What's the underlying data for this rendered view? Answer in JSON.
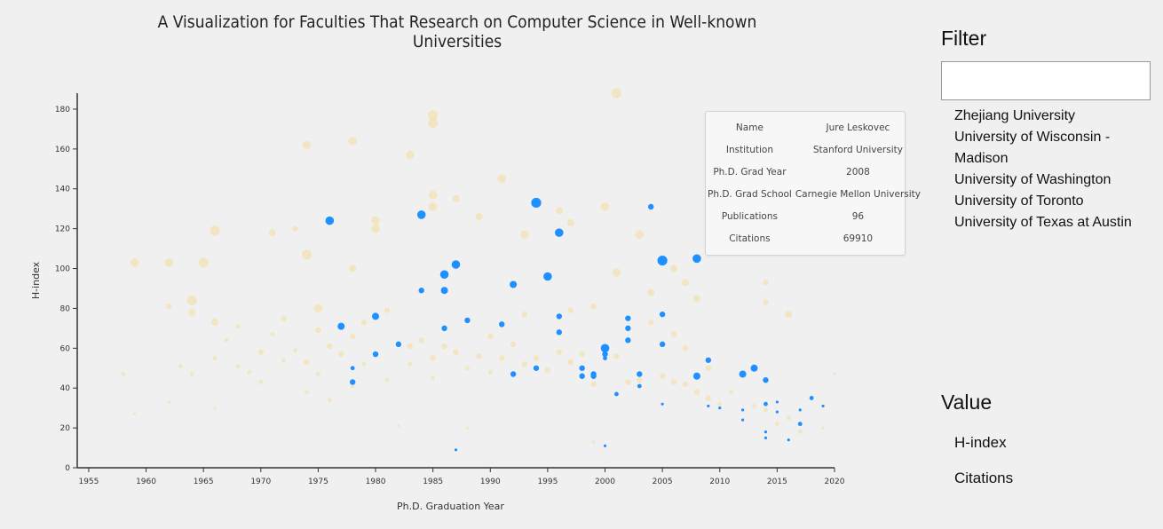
{
  "chart_data": {
    "type": "scatter",
    "title": "A Visualization for Faculties That Research on Computer Science in Well-known Universities",
    "xlabel": "Ph.D. Graduation Year",
    "ylabel": "H-index",
    "xlim": [
      1954,
      2020
    ],
    "ylim": [
      0,
      188
    ],
    "x_ticks": [
      1955,
      1960,
      1965,
      1970,
      1975,
      1980,
      1985,
      1990,
      1995,
      2000,
      2005,
      2010,
      2015,
      2020
    ],
    "y_ticks": [
      0,
      20,
      40,
      60,
      80,
      100,
      120,
      140,
      160,
      180
    ],
    "series": [
      {
        "highlighted": true,
        "color": "#1e90ff",
        "points": [
          [
            1976,
            124,
            6
          ],
          [
            1977,
            71,
            5
          ],
          [
            1978,
            50,
            3
          ],
          [
            1978,
            43,
            4
          ],
          [
            1980,
            76,
            5
          ],
          [
            1980,
            57,
            4
          ],
          [
            1982,
            62,
            4
          ],
          [
            1984,
            127,
            6
          ],
          [
            1984,
            89,
            4
          ],
          [
            1986,
            97,
            6
          ],
          [
            1986,
            89,
            5
          ],
          [
            1986,
            70,
            4
          ],
          [
            1987,
            102,
            6
          ],
          [
            1987,
            9,
            2
          ],
          [
            1988,
            74,
            4
          ],
          [
            1991,
            72,
            4
          ],
          [
            1992,
            47,
            4
          ],
          [
            1992,
            92,
            5
          ],
          [
            1994,
            133,
            7
          ],
          [
            1994,
            50,
            4
          ],
          [
            1995,
            96,
            6
          ],
          [
            1996,
            118,
            6
          ],
          [
            1996,
            76,
            4
          ],
          [
            1996,
            68,
            4
          ],
          [
            1998,
            50,
            4
          ],
          [
            1998,
            46,
            4
          ],
          [
            1999,
            47,
            4
          ],
          [
            1999,
            46,
            4
          ],
          [
            2000,
            60,
            6
          ],
          [
            2000,
            57,
            4
          ],
          [
            2000,
            55,
            3
          ],
          [
            2000,
            11,
            2
          ],
          [
            2001,
            37,
            3
          ],
          [
            2002,
            75,
            4
          ],
          [
            2002,
            70,
            4
          ],
          [
            2002,
            64,
            4
          ],
          [
            2003,
            47,
            4
          ],
          [
            2003,
            41,
            3
          ],
          [
            2004,
            131,
            4
          ],
          [
            2005,
            104,
            7
          ],
          [
            2005,
            77,
            4
          ],
          [
            2005,
            62,
            4
          ],
          [
            2005,
            32,
            2
          ],
          [
            2008,
            105,
            6
          ],
          [
            2008,
            46,
            5
          ],
          [
            2009,
            54,
            4
          ],
          [
            2009,
            31,
            2
          ],
          [
            2010,
            30,
            2
          ],
          [
            2012,
            47,
            5
          ],
          [
            2012,
            29,
            2
          ],
          [
            2012,
            24,
            2
          ],
          [
            2013,
            50,
            5
          ],
          [
            2014,
            44,
            4
          ],
          [
            2014,
            32,
            3
          ],
          [
            2014,
            18,
            2
          ],
          [
            2014,
            15,
            2
          ],
          [
            2015,
            33,
            2
          ],
          [
            2015,
            28,
            2
          ],
          [
            2016,
            14,
            2
          ],
          [
            2017,
            29,
            2
          ],
          [
            2017,
            22,
            3
          ],
          [
            2018,
            35,
            3
          ],
          [
            2019,
            31,
            2
          ]
        ]
      },
      {
        "highlighted": false,
        "color": "#f5d88a",
        "points": [
          [
            1959,
            103,
            6
          ],
          [
            1962,
            103,
            6
          ],
          [
            1962,
            81,
            4
          ],
          [
            1964,
            84,
            7
          ],
          [
            1964,
            78,
            5
          ],
          [
            1965,
            103,
            7
          ],
          [
            1966,
            119,
            7
          ],
          [
            1966,
            73,
            5
          ],
          [
            1971,
            118,
            5
          ],
          [
            1973,
            120,
            4
          ],
          [
            1974,
            162,
            6
          ],
          [
            1974,
            107,
            7
          ],
          [
            1975,
            80,
            6
          ],
          [
            1978,
            164,
            6
          ],
          [
            1978,
            100,
            5
          ],
          [
            1980,
            124,
            6
          ],
          [
            1980,
            120,
            6
          ],
          [
            1983,
            157,
            6
          ],
          [
            1985,
            177,
            7
          ],
          [
            1985,
            173,
            7
          ],
          [
            1985,
            137,
            6
          ],
          [
            1985,
            131,
            6
          ],
          [
            1987,
            135,
            5
          ],
          [
            1989,
            126,
            5
          ],
          [
            1991,
            145,
            6
          ],
          [
            1993,
            117,
            6
          ],
          [
            1996,
            129,
            5
          ],
          [
            1997,
            123,
            5
          ],
          [
            2000,
            131,
            6
          ],
          [
            2001,
            188,
            7
          ],
          [
            2001,
            98,
            6
          ],
          [
            2003,
            117,
            6
          ],
          [
            2004,
            88,
            5
          ],
          [
            2006,
            100,
            5
          ],
          [
            2007,
            93,
            5
          ],
          [
            2008,
            85,
            5
          ],
          [
            2014,
            93,
            4
          ],
          [
            2014,
            83,
            4
          ],
          [
            2016,
            77,
            5
          ],
          [
            1958,
            47,
            3
          ],
          [
            1959,
            27,
            2
          ],
          [
            1962,
            33,
            2
          ],
          [
            1963,
            51,
            3
          ],
          [
            1964,
            47,
            3
          ],
          [
            1966,
            55,
            3
          ],
          [
            1966,
            30,
            2
          ],
          [
            1967,
            64,
            3
          ],
          [
            1968,
            71,
            3
          ],
          [
            1968,
            51,
            3
          ],
          [
            1969,
            48,
            3
          ],
          [
            1970,
            58,
            4
          ],
          [
            1970,
            43,
            3
          ],
          [
            1971,
            67,
            3
          ],
          [
            1972,
            75,
            4
          ],
          [
            1972,
            54,
            3
          ],
          [
            1973,
            59,
            3
          ],
          [
            1974,
            53,
            4
          ],
          [
            1974,
            38,
            3
          ],
          [
            1975,
            69,
            4
          ],
          [
            1975,
            47,
            3
          ],
          [
            1976,
            61,
            4
          ],
          [
            1976,
            34,
            3
          ],
          [
            1977,
            57,
            4
          ],
          [
            1978,
            66,
            4
          ],
          [
            1978,
            41,
            3
          ],
          [
            1979,
            52,
            3
          ],
          [
            1979,
            73,
            4
          ],
          [
            1981,
            79,
            4
          ],
          [
            1981,
            44,
            3
          ],
          [
            1983,
            61,
            4
          ],
          [
            1983,
            52,
            3
          ],
          [
            1984,
            64,
            4
          ],
          [
            1985,
            55,
            4
          ],
          [
            1985,
            45,
            3
          ],
          [
            1986,
            61,
            4
          ],
          [
            1987,
            58,
            4
          ],
          [
            1988,
            50,
            3
          ],
          [
            1989,
            56,
            4
          ],
          [
            1990,
            66,
            4
          ],
          [
            1990,
            48,
            3
          ],
          [
            1991,
            55,
            4
          ],
          [
            1992,
            62,
            4
          ],
          [
            1993,
            52,
            4
          ],
          [
            1994,
            55,
            4
          ],
          [
            1995,
            49,
            4
          ],
          [
            1996,
            58,
            4
          ],
          [
            1997,
            53,
            4
          ],
          [
            1998,
            57,
            4
          ],
          [
            1999,
            42,
            4
          ],
          [
            2001,
            56,
            4
          ],
          [
            2002,
            43,
            4
          ],
          [
            2003,
            44,
            4
          ],
          [
            2005,
            46,
            4
          ],
          [
            2006,
            43,
            4
          ],
          [
            2007,
            42,
            4
          ],
          [
            2008,
            38,
            4
          ],
          [
            2009,
            35,
            4
          ],
          [
            2010,
            32,
            3
          ],
          [
            2011,
            38,
            3
          ],
          [
            2013,
            31,
            3
          ],
          [
            2014,
            29,
            3
          ],
          [
            2015,
            22,
            3
          ],
          [
            2016,
            25,
            3
          ],
          [
            2017,
            18,
            3
          ],
          [
            2019,
            20,
            2
          ],
          [
            2020,
            47,
            2
          ],
          [
            1999,
            81,
            4
          ],
          [
            1997,
            79,
            4
          ],
          [
            1993,
            77,
            4
          ],
          [
            2004,
            73,
            4
          ],
          [
            2006,
            67,
            4
          ],
          [
            2007,
            60,
            4
          ],
          [
            2009,
            50,
            4
          ],
          [
            1999,
            13,
            2
          ],
          [
            1988,
            20,
            2
          ],
          [
            1982,
            21,
            2
          ]
        ]
      }
    ]
  },
  "tooltip": {
    "rows": [
      {
        "key": "Name",
        "value": "Jure Leskovec"
      },
      {
        "key": "Institution",
        "value": "Stanford University"
      },
      {
        "key": "Ph.D. Grad Year",
        "value": "2008"
      },
      {
        "key": "Ph.D. Grad School",
        "value": "Carnegie Mellon University"
      },
      {
        "key": "Publications",
        "value": "96"
      },
      {
        "key": "Citations",
        "value": "69910"
      }
    ]
  },
  "filter": {
    "title": "Filter",
    "input_value": "",
    "universities": [
      "Zhejiang University",
      "University of Wisconsin - Madison",
      "University of Washington",
      "University of Toronto",
      "University of Texas at Austin"
    ]
  },
  "value_panel": {
    "title": "Value",
    "options": [
      "H-index",
      "Citations"
    ]
  }
}
